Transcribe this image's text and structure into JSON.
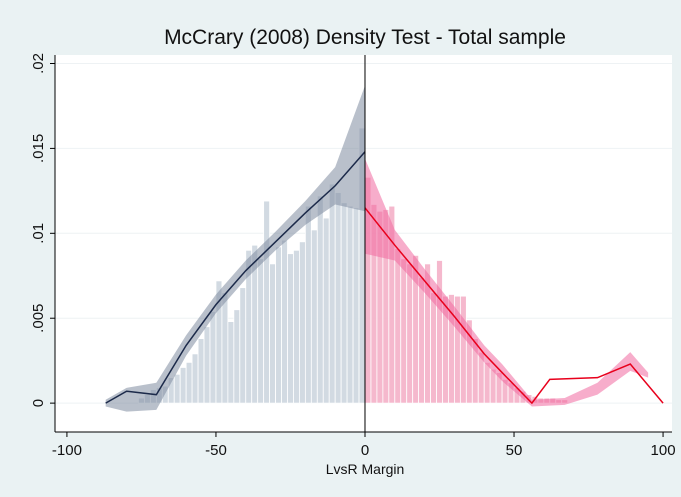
{
  "chart_data": {
    "type": "density_test",
    "title": "McCrary (2008) Density Test - Total sample",
    "x_label": "LvsR Margin",
    "cutoff": 0,
    "xlim": [
      -104,
      103
    ],
    "xticks": [
      -100,
      -50,
      0,
      50,
      100
    ],
    "ylim": [
      -0.0017,
      0.0205
    ],
    "yticks": [
      0,
      {
        "value": 0.005,
        "label": ".005"
      },
      {
        "value": 0.01,
        "label": ".01"
      },
      {
        "value": 0.015,
        "label": ".015"
      },
      {
        "value": 0.02,
        "label": ".02"
      }
    ],
    "grid": true,
    "histogram": {
      "left_color": "#cdd6df",
      "right_color": "#f4b0c8",
      "bins": [
        -76,
        -74,
        -72,
        -70,
        -68,
        -66,
        -64,
        -62,
        -60,
        -58,
        -56,
        -54,
        -52,
        -50,
        -48,
        -46,
        -44,
        -42,
        -40,
        -38,
        -36,
        -34,
        -32,
        -30,
        -28,
        -26,
        -24,
        -22,
        -20,
        -18,
        -16,
        -14,
        -12,
        -10,
        -8,
        -6,
        -4,
        -2,
        0,
        2,
        4,
        6,
        8,
        10,
        12,
        14,
        16,
        18,
        20,
        22,
        24,
        26,
        28,
        30,
        32,
        34,
        36,
        38,
        40,
        42,
        44,
        46,
        48,
        50,
        52,
        54,
        56,
        58,
        60,
        62,
        64,
        66,
        68
      ],
      "values": [
        0.0003,
        0.0005,
        0.0008,
        0.0009,
        0.001,
        0.0015,
        0.0017,
        0.0021,
        0.0024,
        0.0029,
        0.0038,
        0.0045,
        0.0054,
        0.0072,
        0.0065,
        0.0048,
        0.0055,
        0.0068,
        0.009,
        0.0093,
        0.0085,
        0.0119,
        0.0082,
        0.0092,
        0.0096,
        0.0088,
        0.009,
        0.0095,
        0.0116,
        0.0102,
        0.0122,
        0.0109,
        0.0129,
        0.0124,
        0.0118,
        0.0116,
        0.0115,
        0.0162,
        0.0133,
        0.0117,
        0.0113,
        0.0114,
        0.0116,
        0.0091,
        0.0085,
        0.0082,
        0.0087,
        0.0074,
        0.0082,
        0.0065,
        0.0084,
        0.0063,
        0.0064,
        0.0063,
        0.0063,
        0.0049,
        0.0038,
        0.003,
        0.0024,
        0.002,
        0.0018,
        0.0014,
        0.0012,
        0.0009,
        0.0007,
        0.0005,
        0.0004,
        0.0003,
        0.0003,
        0.0003,
        0.0002,
        0.0002
      ]
    },
    "bands": [
      {
        "color": "#7f8ca0",
        "x": [
          -87,
          -80,
          -70,
          -60,
          -50,
          -40,
          -30,
          -20,
          -10,
          0
        ],
        "lower": [
          -0.0002,
          -0.0005,
          -0.0004,
          0.0028,
          0.0053,
          0.0073,
          0.009,
          0.0105,
          0.0117,
          0.0113
        ],
        "upper": [
          0.0002,
          0.0009,
          0.0012,
          0.004,
          0.0064,
          0.0084,
          0.0101,
          0.0119,
          0.0139,
          0.0187
        ]
      },
      {
        "color": "#f06aa0",
        "x": [
          0,
          10,
          20,
          30,
          40,
          46,
          56,
          67,
          78,
          89,
          95
        ],
        "lower": [
          0.0088,
          0.0084,
          0.0065,
          0.0045,
          0.0024,
          0.0013,
          -0.0002,
          -0.0001,
          0.0005,
          0.0019,
          0.0015
        ],
        "upper": [
          0.0144,
          0.0102,
          0.0079,
          0.0057,
          0.0034,
          0.0023,
          0.0002,
          0.0003,
          0.0012,
          0.003,
          0.0018
        ]
      }
    ],
    "series": [
      {
        "color": "#1c2a4a",
        "x": [
          -87,
          -80,
          -70,
          -60,
          -50,
          -40,
          -30,
          -20,
          -10,
          0
        ],
        "values": [
          0,
          0.0007,
          0.0005,
          0.0034,
          0.0058,
          0.0078,
          0.0095,
          0.0112,
          0.0128,
          0.0148
        ]
      },
      {
        "color": "#e8001c",
        "x": [
          0,
          10,
          20,
          30,
          40,
          46,
          56,
          62,
          78,
          89,
          100
        ],
        "values": [
          0.0115,
          0.0093,
          0.0072,
          0.0051,
          0.0029,
          0.0018,
          0,
          0.0014,
          0.0015,
          0.0023,
          0
        ]
      }
    ]
  }
}
